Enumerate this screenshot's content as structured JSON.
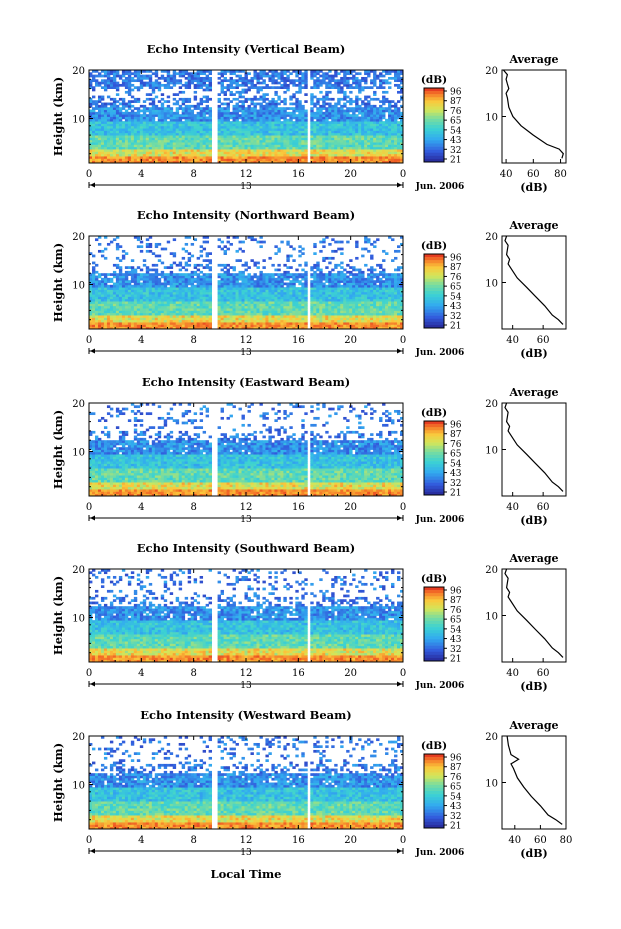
{
  "xlabel": "Local Time",
  "date_label": "Jun. 2006",
  "colorbar": {
    "unit": "(dB)",
    "ticks": [
      "96",
      "87",
      "76",
      "65",
      "54",
      "43",
      "32",
      "21"
    ]
  },
  "chart_data": [
    {
      "type": "heatmap",
      "title": "Echo Intensity (Vertical Beam)",
      "ylabel": "Height (km)",
      "yticks": [
        "20",
        "10"
      ],
      "xticks": [
        "0",
        "4",
        "8",
        "12",
        "16",
        "20",
        "0"
      ],
      "day_label": "13",
      "profile": {
        "title": "Average",
        "xlabel": "(dB)",
        "xticks": [
          "40",
          "60",
          "80"
        ],
        "yticks": [
          "20",
          "10"
        ],
        "xlim": [
          37,
          84
        ],
        "points": [
          [
            81,
            1
          ],
          [
            82,
            2
          ],
          [
            79,
            3
          ],
          [
            70,
            4
          ],
          [
            60,
            6
          ],
          [
            51,
            8
          ],
          [
            45,
            10
          ],
          [
            42,
            12
          ],
          [
            41,
            14
          ],
          [
            40,
            15
          ],
          [
            42,
            16
          ],
          [
            41,
            17
          ],
          [
            40,
            18
          ],
          [
            41,
            19
          ],
          [
            38,
            20
          ]
        ]
      }
    },
    {
      "type": "heatmap",
      "title": "Echo Intensity (Northward Beam)",
      "ylabel": "Height (km)",
      "yticks": [
        "20",
        "10"
      ],
      "xticks": [
        "0",
        "4",
        "8",
        "12",
        "16",
        "20",
        "0"
      ],
      "day_label": "13",
      "profile": {
        "title": "Average",
        "xlabel": "(dB)",
        "xticks": [
          "40",
          "60"
        ],
        "yticks": [
          "20",
          "10"
        ],
        "xlim": [
          33,
          75
        ],
        "points": [
          [
            73,
            1
          ],
          [
            70,
            2
          ],
          [
            66,
            3
          ],
          [
            61,
            5
          ],
          [
            55,
            7
          ],
          [
            49,
            9
          ],
          [
            43,
            11
          ],
          [
            39,
            13
          ],
          [
            37,
            14
          ],
          [
            38,
            15
          ],
          [
            36,
            16
          ],
          [
            37,
            18
          ],
          [
            35,
            19
          ],
          [
            36,
            20
          ]
        ]
      }
    },
    {
      "type": "heatmap",
      "title": "Echo Intensity (Eastward Beam)",
      "ylabel": "Height (km)",
      "yticks": [
        "20",
        "10"
      ],
      "xticks": [
        "0",
        "4",
        "8",
        "12",
        "16",
        "20",
        "0"
      ],
      "day_label": "13",
      "profile": {
        "title": "Average",
        "xlabel": "(dB)",
        "xticks": [
          "40",
          "60"
        ],
        "yticks": [
          "20",
          "10"
        ],
        "xlim": [
          33,
          75
        ],
        "points": [
          [
            73,
            1
          ],
          [
            70,
            2
          ],
          [
            66,
            3
          ],
          [
            61,
            5
          ],
          [
            55,
            7
          ],
          [
            49,
            9
          ],
          [
            43,
            11
          ],
          [
            39,
            13
          ],
          [
            37,
            14
          ],
          [
            38,
            15
          ],
          [
            36,
            16
          ],
          [
            37,
            18
          ],
          [
            35,
            19
          ],
          [
            36,
            20
          ]
        ]
      }
    },
    {
      "type": "heatmap",
      "title": "Echo Intensity (Southward Beam)",
      "ylabel": "Height (km)",
      "yticks": [
        "20",
        "10"
      ],
      "xticks": [
        "0",
        "4",
        "8",
        "12",
        "16",
        "20",
        "0"
      ],
      "day_label": "13",
      "profile": {
        "title": "Average",
        "xlabel": "(dB)",
        "xticks": [
          "40",
          "60"
        ],
        "yticks": [
          "20",
          "10"
        ],
        "xlim": [
          33,
          75
        ],
        "points": [
          [
            73,
            1
          ],
          [
            70,
            2
          ],
          [
            66,
            3
          ],
          [
            61,
            5
          ],
          [
            55,
            7
          ],
          [
            49,
            9
          ],
          [
            43,
            11
          ],
          [
            39,
            13
          ],
          [
            37,
            14
          ],
          [
            38,
            15
          ],
          [
            36,
            16
          ],
          [
            37,
            18
          ],
          [
            35,
            19
          ],
          [
            36,
            20
          ]
        ]
      }
    },
    {
      "type": "heatmap",
      "title": "Echo Intensity (Westward Beam)",
      "ylabel": "Height (km)",
      "yticks": [
        "20",
        "10"
      ],
      "xticks": [
        "0",
        "4",
        "8",
        "12",
        "16",
        "20",
        "0"
      ],
      "day_label": "13",
      "profile": {
        "title": "Average",
        "xlabel": "(dB)",
        "xticks": [
          "40",
          "60",
          "80"
        ],
        "yticks": [
          "20",
          "10"
        ],
        "xlim": [
          30,
          80
        ],
        "points": [
          [
            77,
            1
          ],
          [
            72,
            2
          ],
          [
            66,
            3
          ],
          [
            60,
            5
          ],
          [
            53,
            7
          ],
          [
            47,
            9
          ],
          [
            42,
            11
          ],
          [
            39,
            13
          ],
          [
            37,
            14
          ],
          [
            43,
            15
          ],
          [
            37,
            16
          ],
          [
            35,
            18
          ],
          [
            34,
            20
          ]
        ]
      }
    }
  ]
}
